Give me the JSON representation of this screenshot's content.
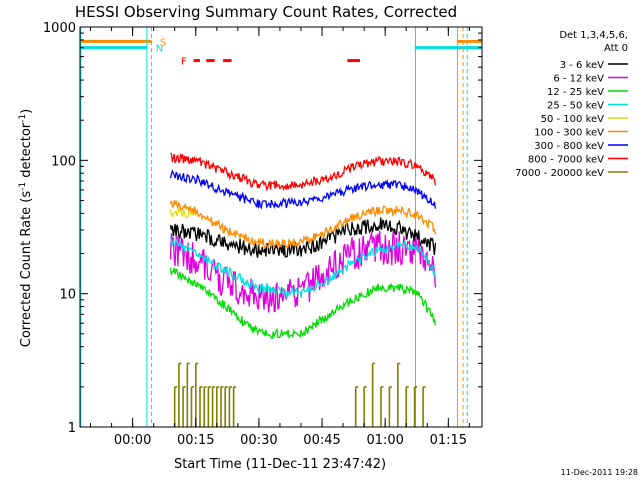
{
  "chart_data": {
    "type": "line",
    "title": "HESSI Observing Summary Count Rates, Corrected",
    "xlabel": "Start Time (11-Dec-11 23:47:42)",
    "ylabel_main": "Corrected Count Rate (s",
    "ylabel_sup1": "-1",
    "ylabel_mid": " detector",
    "ylabel_sup2": "-1",
    "ylabel_end": ")",
    "x_unit": "minutes since start",
    "xlim": [
      -12.5,
      83
    ],
    "ylim": [
      1,
      1000
    ],
    "yscale": "log",
    "x_ticks": [
      {
        "value": 0,
        "label": "00:00"
      },
      {
        "value": 15,
        "label": "00:15"
      },
      {
        "value": 30,
        "label": "00:30"
      },
      {
        "value": 45,
        "label": "00:45"
      },
      {
        "value": 60,
        "label": "01:00"
      },
      {
        "value": 75,
        "label": "01:15"
      }
    ],
    "y_ticks": [
      {
        "value": 1,
        "label": "1"
      },
      {
        "value": 10,
        "label": "10"
      },
      {
        "value": 100,
        "label": "100"
      },
      {
        "value": 1000,
        "label": "1000"
      }
    ],
    "legend_header": [
      "Det 1,3,4,5,6,",
      "Att 0"
    ],
    "legend_position": "right",
    "timestamp": "11-Dec-2011 19:28",
    "series": [
      {
        "name": "3 - 6 keV",
        "color": "#000000",
        "x": [
          9,
          15,
          22,
          30,
          40,
          47,
          52,
          58,
          64,
          68,
          72
        ],
        "values": [
          30,
          28,
          24,
          21,
          21,
          26,
          31,
          33,
          30,
          26,
          22
        ]
      },
      {
        "name": "6 - 12 keV",
        "color": "#e000e0",
        "x": [
          9,
          15,
          22,
          30,
          40,
          47,
          52,
          58,
          64,
          68,
          72
        ],
        "values": [
          22,
          18,
          12,
          9,
          10,
          15,
          20,
          22,
          22,
          20,
          14
        ]
      },
      {
        "name": "12 - 25 keV",
        "color": "#00dd00",
        "x": [
          9,
          15,
          22,
          30,
          40,
          47,
          52,
          58,
          64,
          68,
          72
        ],
        "values": [
          15,
          12,
          8,
          5,
          5,
          7,
          9,
          11,
          11,
          10,
          6
        ]
      },
      {
        "name": "25 - 50 keV",
        "color": "#00e0e0",
        "x": [
          9,
          15,
          22,
          30,
          40,
          47,
          52,
          58,
          64,
          68,
          72
        ],
        "values": [
          25,
          20,
          15,
          11,
          10,
          13,
          17,
          21,
          24,
          22,
          14
        ]
      },
      {
        "name": "50 - 100 keV",
        "color": "#dcdc00",
        "x": [
          9,
          12,
          15
        ],
        "values": [
          40,
          40,
          40
        ]
      },
      {
        "name": "100 - 300 keV",
        "color": "#ff8c00",
        "x": [
          9,
          15,
          22,
          30,
          40,
          47,
          52,
          58,
          64,
          68,
          72
        ],
        "values": [
          48,
          42,
          30,
          24,
          24,
          30,
          37,
          42,
          42,
          38,
          30
        ]
      },
      {
        "name": "300 - 800 keV",
        "color": "#0000ff",
        "x": [
          9,
          15,
          22,
          30,
          40,
          47,
          52,
          58,
          64,
          68,
          72
        ],
        "values": [
          78,
          72,
          58,
          47,
          48,
          55,
          62,
          66,
          65,
          58,
          46
        ]
      },
      {
        "name": "800 - 7000 keV",
        "color": "#ff0000",
        "x": [
          9,
          15,
          22,
          30,
          40,
          47,
          52,
          58,
          64,
          68,
          72
        ],
        "values": [
          105,
          100,
          82,
          65,
          65,
          75,
          88,
          98,
          97,
          90,
          70
        ]
      },
      {
        "name": "7000 - 20000 keV",
        "color": "#808000",
        "x": [
          10,
          11,
          12,
          13,
          14,
          15,
          16,
          17,
          18,
          19,
          20,
          21,
          22,
          23,
          24,
          53,
          55,
          57,
          59,
          61,
          63,
          65,
          67,
          69
        ],
        "values": [
          2,
          3,
          2,
          3,
          2,
          3,
          2,
          2,
          2,
          2,
          2,
          2,
          2,
          2,
          2,
          2,
          2,
          3,
          2,
          2,
          3,
          2,
          2,
          2
        ]
      }
    ],
    "annotations": [
      {
        "label": "S",
        "color": "#ff8c00",
        "level": 780
      },
      {
        "label": "N",
        "color": "#00e0e0",
        "level": 700
      },
      {
        "label": "F",
        "color": "#ff0000",
        "level": 560
      }
    ],
    "saa_band": {
      "color": "#ff8c00",
      "segments": [
        [
          -12.5,
          4.5
        ],
        [
          77,
          83
        ]
      ]
    },
    "night_band": {
      "color": "#00e0e0",
      "segments": [
        [
          -12.5,
          3.5
        ],
        [
          67,
          83
        ]
      ]
    },
    "flare_marks": {
      "color": "#ff0000",
      "segments": [
        [
          14.5,
          16
        ],
        [
          17.5,
          19.5
        ],
        [
          21.5,
          23.5
        ],
        [
          51,
          54
        ]
      ]
    },
    "vertical_markers": [
      {
        "x": -12.3,
        "color": "#00e0e0",
        "style": "solid"
      },
      {
        "x": 3.4,
        "color": "#00e0e0",
        "style": "solid"
      },
      {
        "x": 4.5,
        "color": "#ff8c00",
        "style": "dashed"
      },
      {
        "x": 67.2,
        "color": "#00e0e0",
        "style": "solid"
      },
      {
        "x": 77.2,
        "color": "#ff8c00",
        "style": "solid"
      },
      {
        "x": 79.5,
        "color": "#00e0e0",
        "style": "dashed"
      },
      {
        "x": 78.5,
        "color": "#ff8c00",
        "style": "dashed"
      }
    ]
  }
}
